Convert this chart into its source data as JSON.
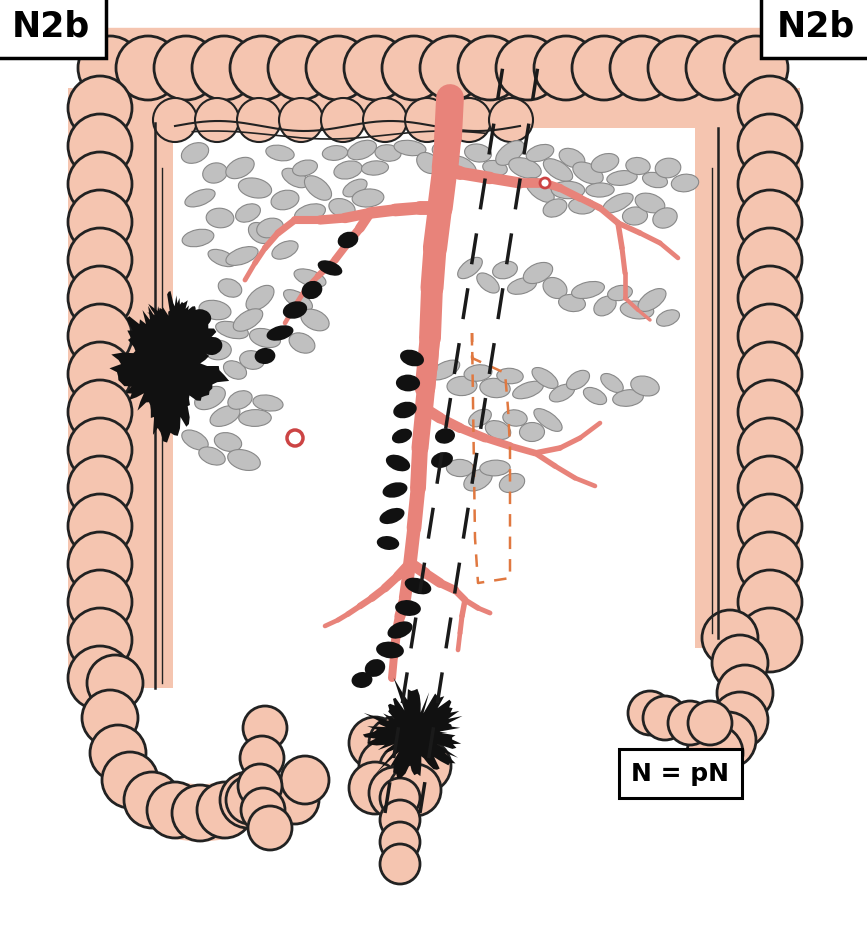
{
  "title_left": "N2b",
  "title_right": "N2b",
  "label_bottom": "N = pN",
  "colon_fill": "#f5c5b0",
  "colon_stroke": "#222222",
  "colon_inner_stroke": "#444444",
  "vessel_color_light": "#e8837a",
  "vessel_color_dark": "#cc4444",
  "vessel_outline": "#cc4444",
  "lymph_normal_fill": "#c0c0c0",
  "lymph_normal_stroke": "#888888",
  "lymph_meta_fill": "#111111",
  "tumor_fill": "#111111",
  "dash_black": "#1a1a1a",
  "dash_orange": "#e07840",
  "background": "#ffffff",
  "colon_lw": 2.0,
  "vessel_lw_main": 18,
  "vessel_lw_branch1": 9,
  "vessel_lw_branch2": 6,
  "vessel_lw_branch3": 4
}
